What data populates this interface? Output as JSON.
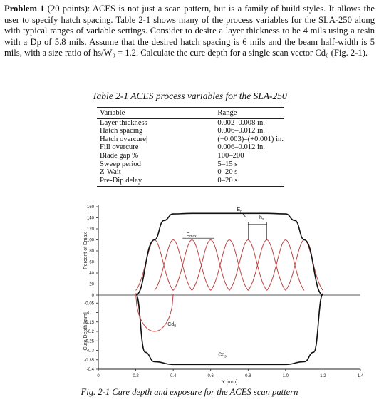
{
  "problem": {
    "label": "Problem 1",
    "text": "(20 points): ACES is not just a scan pattern, but is a family of build styles. It allows the user to specify hatch spacing. Table 2-1 shows many of the process variables for the SLA-250 along with typical ranges of variable settings. Consider to desire a layer thickness to be 4 mils using a resin with a Dp of 5.8 mils. Assume that the desired hatch spacing is 6 mils and the beam half-width is 5 mils, with a size ratio of hs/W₀ = 1.2. Calculate the cure depth for a single scan vector Cd₀ (Fig. 2-1)."
  },
  "table": {
    "caption": "Table 2-1 ACES process variables for the SLA-250",
    "headers": [
      "Variable",
      "Range"
    ],
    "rows": [
      [
        "Layer thickness",
        "0.002–0.008 in."
      ],
      [
        "Hatch spacing",
        "0.006–0.012 in."
      ],
      [
        "Hatch overcure|",
        "(−0.003)–(+0.001) in."
      ],
      [
        "Fill overcure",
        "0.006–0.012 in."
      ],
      [
        "Blade gap %",
        "100–200"
      ],
      [
        "Sweep period",
        "5–15 s"
      ],
      [
        "Z-Wait",
        "0–20 s"
      ],
      [
        "Pre-Dip delay",
        "0–20 s"
      ]
    ]
  },
  "figure": {
    "caption": "Fig. 2-1 Cure depth and exposure for the ACES scan pattern",
    "labels": {
      "ep": "Ep",
      "hs": "hs",
      "emax": "Emax",
      "cd0": "Cd0",
      "cds": "Cds"
    },
    "chart_data": [
      {
        "type": "line",
        "title": "",
        "xlabel": "Y [mm]",
        "ylabel": "Percent of Emax",
        "xlim": [
          0,
          1.4
        ],
        "ylim": [
          0,
          160
        ],
        "xticks": [
          "0",
          "0.2",
          "0.4",
          "0.6",
          "0.8",
          "1.0",
          "1.2",
          "1.4"
        ],
        "yticks": [
          "160",
          "140",
          "120",
          "100",
          "80",
          "60",
          "40",
          "20",
          "0"
        ],
        "series": [
          {
            "name": "Ep",
            "x": [
              0.2,
              0.3,
              0.35,
              0.4,
              0.5,
              0.6,
              0.7,
              0.8,
              0.9,
              1.0,
              1.05,
              1.1,
              1.2
            ],
            "y": [
              0,
              100,
              135,
              147,
              148,
              148,
              148,
              148,
              148,
              147,
              135,
              100,
              0
            ]
          },
          {
            "name": "Emax",
            "bell_centers_x": [
              0.3,
              0.4,
              0.5,
              0.6,
              0.7,
              0.8,
              0.9,
              1.0,
              1.1
            ],
            "peak_y": 100
          }
        ]
      },
      {
        "type": "line",
        "title": "",
        "xlabel": "Y [mm]",
        "ylabel": "Cure Depth [mm]",
        "xlim": [
          0,
          1.4
        ],
        "ylim": [
          -0.4,
          0
        ],
        "yticks": [
          "0",
          "-0.05",
          "-0.1",
          "-0.15",
          "-0.2",
          "-0.25",
          "-0.3",
          "-0.35",
          "-0.4"
        ],
        "series": [
          {
            "name": "Cd0",
            "x": [
              0.2,
              0.25,
              0.3,
              0.35,
              0.4
            ],
            "y": [
              0,
              -0.15,
              -0.2,
              -0.15,
              0
            ]
          },
          {
            "name": "Cds",
            "x": [
              0.2,
              0.25,
              0.3,
              0.4,
              0.6,
              0.8,
              1.0,
              1.1,
              1.15,
              1.2
            ],
            "y": [
              0,
              -0.31,
              -0.36,
              -0.375,
              -0.375,
              -0.375,
              -0.375,
              -0.36,
              -0.31,
              0
            ]
          }
        ]
      }
    ]
  }
}
